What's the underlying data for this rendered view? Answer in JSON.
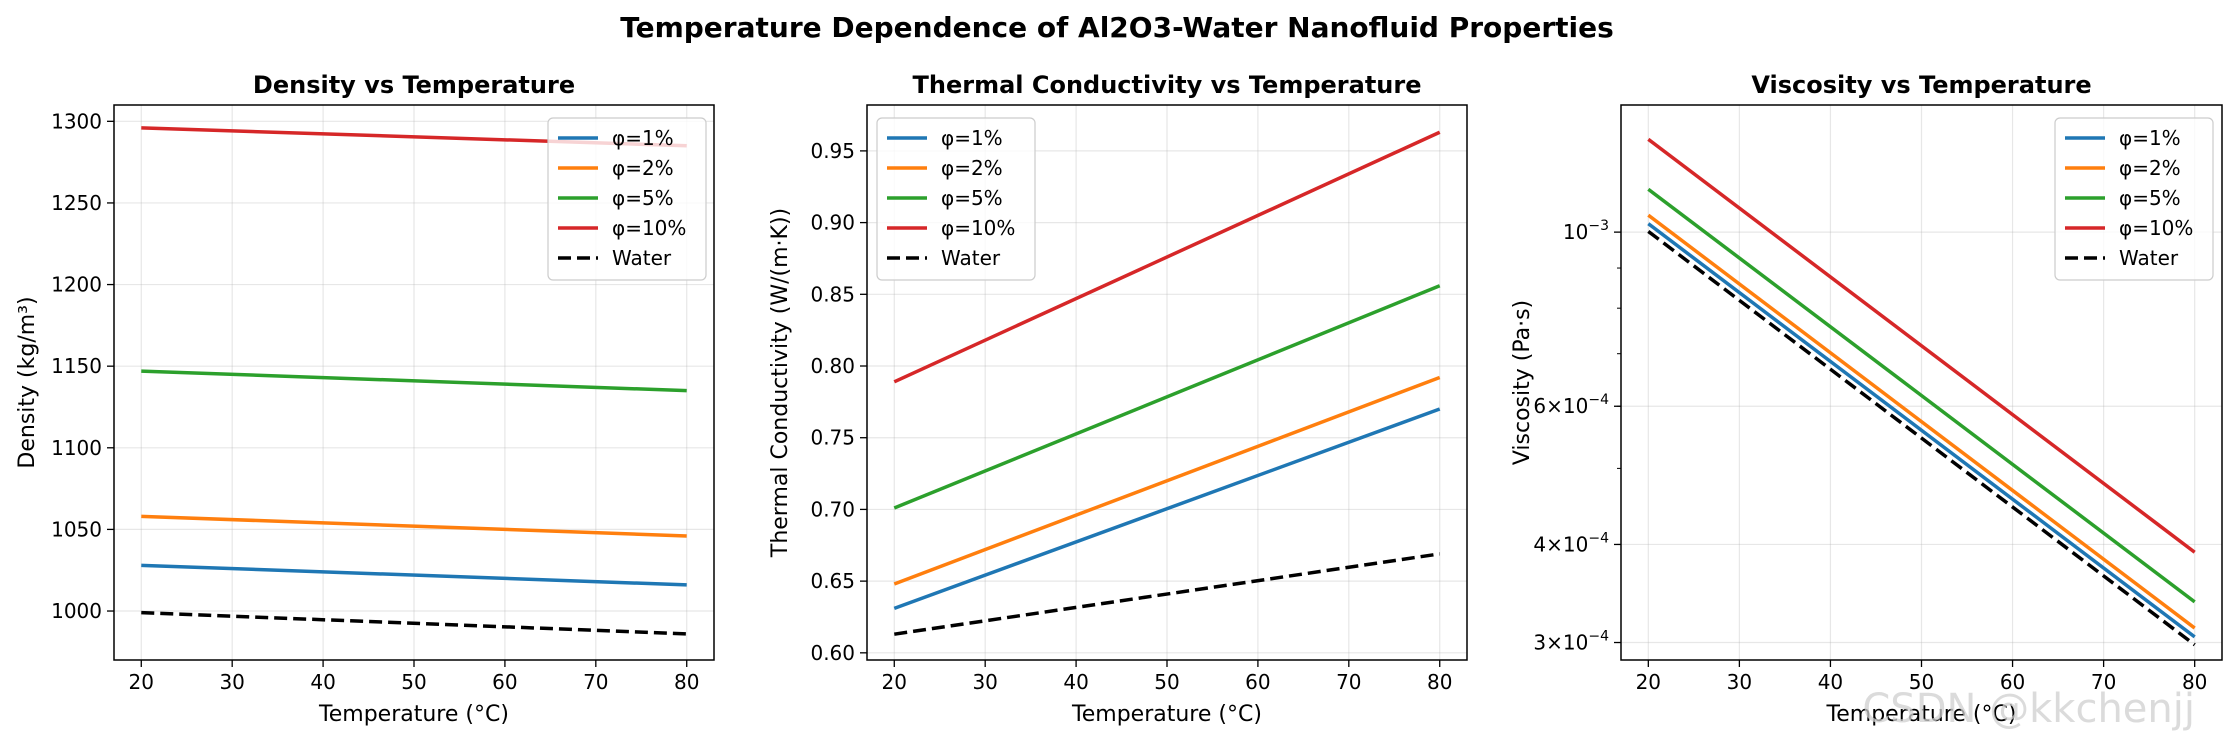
{
  "figure": {
    "title": "Temperature Dependence of Al2O3-Water Nanofluid Properties",
    "watermark": "CSDN @kkchenjj"
  },
  "chart_data": [
    {
      "type": "line",
      "title": "Density vs Temperature",
      "xlabel": "Temperature (°C)",
      "ylabel": "Density (kg/m³)",
      "x": [
        20,
        80
      ],
      "xlim": [
        17,
        83
      ],
      "ylim": [
        970,
        1310
      ],
      "xticks": [
        "20",
        "30",
        "40",
        "50",
        "60",
        "70",
        "80"
      ],
      "yticks": [
        "1000",
        "1050",
        "1100",
        "1150",
        "1200",
        "1250",
        "1300"
      ],
      "yscale": "linear",
      "grid": true,
      "legend": "top-right",
      "series": [
        {
          "name": "φ=1%",
          "color": "#1f77b4",
          "dash": false,
          "values": [
            1028,
            1016
          ]
        },
        {
          "name": "φ=2%",
          "color": "#ff7f0e",
          "dash": false,
          "values": [
            1058,
            1046
          ]
        },
        {
          "name": "φ=5%",
          "color": "#2ca02c",
          "dash": false,
          "values": [
            1147,
            1135
          ]
        },
        {
          "name": "φ=10%",
          "color": "#d62728",
          "dash": false,
          "values": [
            1296,
            1285
          ]
        },
        {
          "name": "Water",
          "color": "#000000",
          "dash": true,
          "values": [
            999,
            986
          ]
        }
      ]
    },
    {
      "type": "line",
      "title": "Thermal Conductivity vs Temperature",
      "xlabel": "Temperature (°C)",
      "ylabel": "Thermal Conductivity (W/(m·K))",
      "x": [
        20,
        80
      ],
      "xlim": [
        17,
        83
      ],
      "ylim": [
        0.595,
        0.982
      ],
      "xticks": [
        "20",
        "30",
        "40",
        "50",
        "60",
        "70",
        "80"
      ],
      "yticks": [
        "0.60",
        "0.65",
        "0.70",
        "0.75",
        "0.80",
        "0.85",
        "0.90",
        "0.95"
      ],
      "yscale": "linear",
      "grid": true,
      "legend": "top-left",
      "series": [
        {
          "name": "φ=1%",
          "color": "#1f77b4",
          "dash": false,
          "values": [
            0.631,
            0.77
          ]
        },
        {
          "name": "φ=2%",
          "color": "#ff7f0e",
          "dash": false,
          "values": [
            0.648,
            0.792
          ]
        },
        {
          "name": "φ=5%",
          "color": "#2ca02c",
          "dash": false,
          "values": [
            0.701,
            0.856
          ]
        },
        {
          "name": "φ=10%",
          "color": "#d62728",
          "dash": false,
          "values": [
            0.789,
            0.963
          ]
        },
        {
          "name": "Water",
          "color": "#000000",
          "dash": true,
          "values": [
            0.613,
            0.669
          ]
        }
      ]
    },
    {
      "type": "line",
      "title": "Viscosity vs Temperature",
      "xlabel": "Temperature (°C)",
      "ylabel": "Viscosity (Pa·s)",
      "x": [
        20,
        80
      ],
      "xlim": [
        17,
        83
      ],
      "ylim": [
        0.000285,
        0.001452
      ],
      "yscale": "log",
      "xticks": [
        "20",
        "30",
        "40",
        "50",
        "60",
        "70",
        "80"
      ],
      "yticks": [
        {
          "value": 0.001,
          "base": "10",
          "exp": "−3",
          "mant": ""
        },
        {
          "value": 0.0006,
          "base": "10",
          "exp": "−4",
          "mant": "6×"
        },
        {
          "value": 0.0004,
          "base": "10",
          "exp": "−4",
          "mant": "4×"
        },
        {
          "value": 0.0003,
          "base": "10",
          "exp": "−4",
          "mant": "3×"
        }
      ],
      "minor_ticks": [
        0.0003,
        0.0004,
        0.0005,
        0.0006,
        0.0007,
        0.0008,
        0.0009
      ],
      "grid": true,
      "legend": "top-right",
      "series": [
        {
          "name": "φ=1%",
          "color": "#1f77b4",
          "dash": false,
          "values": [
            0.001025,
            0.000305
          ]
        },
        {
          "name": "φ=2%",
          "color": "#ff7f0e",
          "dash": false,
          "values": [
            0.001051,
            0.000313
          ]
        },
        {
          "name": "φ=5%",
          "color": "#2ca02c",
          "dash": false,
          "values": [
            0.001134,
            0.000338
          ]
        },
        {
          "name": "φ=10%",
          "color": "#d62728",
          "dash": false,
          "values": [
            0.001313,
            0.000391
          ]
        },
        {
          "name": "Water",
          "color": "#000000",
          "dash": true,
          "values": [
            0.001002,
            0.000298
          ]
        }
      ]
    }
  ]
}
